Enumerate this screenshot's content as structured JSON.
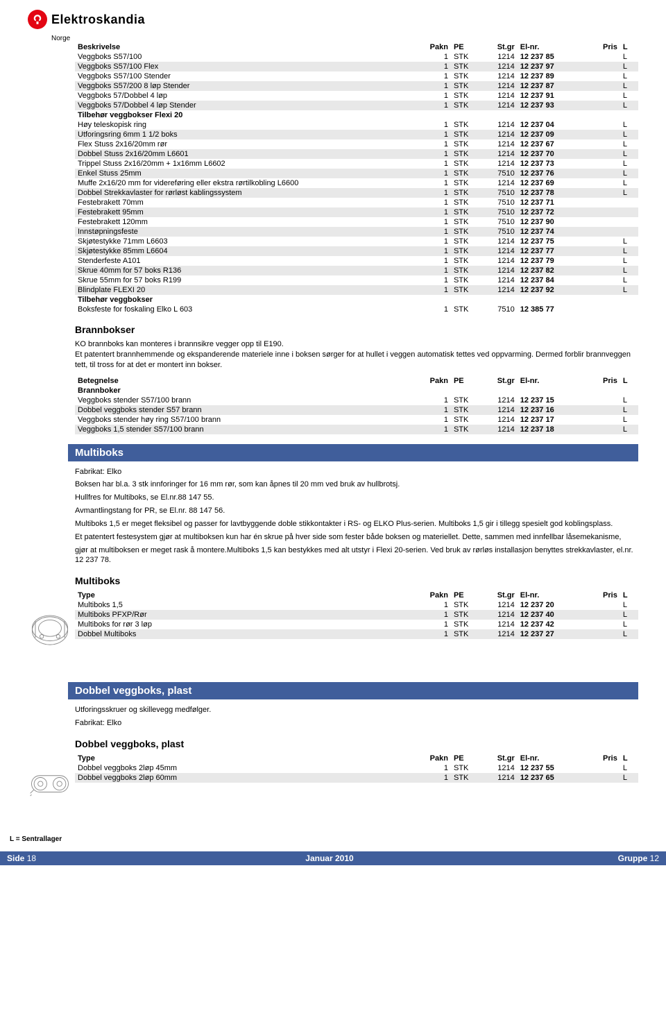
{
  "brand": {
    "name": "Elektroskandia",
    "sub": "Norge"
  },
  "colors": {
    "brand_red": "#e30613",
    "bar_blue": "#405e9b",
    "shade": "#e8e8e8"
  },
  "table1": {
    "headers": [
      "Beskrivelse",
      "Pakn",
      "PE",
      "St.gr",
      "El-nr.",
      "Pris",
      "L"
    ],
    "section_labels": {
      "tilbehor_flexi": "Tilbehør veggbokser Flexi 20",
      "tilbehor": "Tilbehør veggbokser"
    },
    "rows": [
      {
        "d": "Veggboks S57/100",
        "p": "1",
        "pe": "STK",
        "sg": "1214",
        "el": "12 237 85",
        "l": "L",
        "s": 0
      },
      {
        "d": "Veggboks S57/100 Flex",
        "p": "1",
        "pe": "STK",
        "sg": "1214",
        "el": "12 237 97",
        "l": "L",
        "s": 1
      },
      {
        "d": "Veggboks S57/100 Stender",
        "p": "1",
        "pe": "STK",
        "sg": "1214",
        "el": "12 237 89",
        "l": "L",
        "s": 0
      },
      {
        "d": "Veggboks S57/200 8 løp Stender",
        "p": "1",
        "pe": "STK",
        "sg": "1214",
        "el": "12 237 87",
        "l": "L",
        "s": 1
      },
      {
        "d": "Veggboks 57/Dobbel 4 løp",
        "p": "1",
        "pe": "STK",
        "sg": "1214",
        "el": "12 237 91",
        "l": "L",
        "s": 0
      },
      {
        "d": "Veggboks 57/Dobbel 4 løp Stender",
        "p": "1",
        "pe": "STK",
        "sg": "1214",
        "el": "12 237 93",
        "l": "L",
        "s": 1
      },
      {
        "section": "tilbehor_flexi"
      },
      {
        "d": "Høy teleskopisk ring",
        "p": "1",
        "pe": "STK",
        "sg": "1214",
        "el": "12 237 04",
        "l": "L",
        "s": 0
      },
      {
        "d": "Utforingsring 6mm 1 1/2 boks",
        "p": "1",
        "pe": "STK",
        "sg": "1214",
        "el": "12 237 09",
        "l": "L",
        "s": 1
      },
      {
        "d": "Flex Stuss 2x16/20mm rør",
        "p": "1",
        "pe": "STK",
        "sg": "1214",
        "el": "12 237 67",
        "l": "L",
        "s": 0
      },
      {
        "d": "Dobbel Stuss 2x16/20mm L6601",
        "p": "1",
        "pe": "STK",
        "sg": "1214",
        "el": "12 237 70",
        "l": "L",
        "s": 1
      },
      {
        "d": "Trippel Stuss 2x16/20mm + 1x16mm L6602",
        "p": "1",
        "pe": "STK",
        "sg": "1214",
        "el": "12 237 73",
        "l": "L",
        "s": 0
      },
      {
        "d": "Enkel Stuss 25mm",
        "p": "1",
        "pe": "STK",
        "sg": "7510",
        "el": "12 237 76",
        "l": "L",
        "s": 1
      },
      {
        "d": "Muffe 2x16/20 mm for videreføring eller ekstra rørtilkobling L6600",
        "p": "1",
        "pe": "STK",
        "sg": "1214",
        "el": "12 237 69",
        "l": "L",
        "s": 0
      },
      {
        "d": "Dobbel Strekkavlaster for rørløst kablingssystem",
        "p": "1",
        "pe": "STK",
        "sg": "7510",
        "el": "12 237 78",
        "l": "L",
        "s": 1
      },
      {
        "d": "Festebrakett 70mm",
        "p": "1",
        "pe": "STK",
        "sg": "7510",
        "el": "12 237 71",
        "l": "",
        "s": 0
      },
      {
        "d": "Festebrakett 95mm",
        "p": "1",
        "pe": "STK",
        "sg": "7510",
        "el": "12 237 72",
        "l": "",
        "s": 1
      },
      {
        "d": "Festebrakett 120mm",
        "p": "1",
        "pe": "STK",
        "sg": "7510",
        "el": "12 237 90",
        "l": "",
        "s": 0
      },
      {
        "d": "Innstøpningsfeste",
        "p": "1",
        "pe": "STK",
        "sg": "7510",
        "el": "12 237 74",
        "l": "",
        "s": 1
      },
      {
        "d": "Skjøtestykke 71mm L6603",
        "p": "1",
        "pe": "STK",
        "sg": "1214",
        "el": "12 237 75",
        "l": "L",
        "s": 0
      },
      {
        "d": "Skjøtestykke 85mm L6604",
        "p": "1",
        "pe": "STK",
        "sg": "1214",
        "el": "12 237 77",
        "l": "L",
        "s": 1
      },
      {
        "d": "Stenderfeste A101",
        "p": "1",
        "pe": "STK",
        "sg": "1214",
        "el": "12 237 79",
        "l": "L",
        "s": 0
      },
      {
        "d": "Skrue 40mm  for 57 boks R136",
        "p": "1",
        "pe": "STK",
        "sg": "1214",
        "el": "12 237 82",
        "l": "L",
        "s": 1
      },
      {
        "d": "Skrue 55mm for 57 boks R199",
        "p": "1",
        "pe": "STK",
        "sg": "1214",
        "el": "12 237 84",
        "l": "L",
        "s": 0
      },
      {
        "d": "Blindplate FLEXI 20",
        "p": "1",
        "pe": "STK",
        "sg": "1214",
        "el": "12 237 92",
        "l": "L",
        "s": 1
      },
      {
        "section": "tilbehor"
      },
      {
        "d": "Boksfeste for foskaling Elko L 603",
        "p": "1",
        "pe": "STK",
        "sg": "7510",
        "el": "12 385 77",
        "l": "",
        "s": 0
      }
    ]
  },
  "brannbokser": {
    "title": "Brannbokser",
    "para": "KO brannboks kan monteres i brannsikre vegger opp til E190.\nEt patentert brannhemmende og ekspanderende materiele inne i boksen sørger for at hullet i veggen automatisk tettes ved oppvarming. Dermed forblir brannveggen tett, til tross for at det er montert inn bokser.",
    "headers": [
      "Betegnelse",
      "Pakn",
      "PE",
      "St.gr",
      "El-nr.",
      "Pris",
      "L"
    ],
    "section_label": "Brannboker",
    "rows": [
      {
        "d": "Veggboks stender S57/100 brann",
        "p": "1",
        "pe": "STK",
        "sg": "1214",
        "el": "12 237 15",
        "l": "L",
        "s": 0
      },
      {
        "d": "Dobbel veggboks stender S57 brann",
        "p": "1",
        "pe": "STK",
        "sg": "1214",
        "el": "12 237 16",
        "l": "L",
        "s": 1
      },
      {
        "d": "Veggboks stender høy ring  S57/100 brann",
        "p": "1",
        "pe": "STK",
        "sg": "1214",
        "el": "12 237 17",
        "l": "L",
        "s": 0
      },
      {
        "d": "Veggboks 1,5 stender S57/100 brann",
        "p": "1",
        "pe": "STK",
        "sg": "1214",
        "el": "12 237 18",
        "l": "L",
        "s": 1
      }
    ]
  },
  "multiboks": {
    "bar": "Multiboks",
    "fabrikat": "Fabrikat: Elko",
    "lines": [
      "Boksen har bl.a. 3 stk innforinger for 16 mm rør, som kan åpnes til 20 mm ved bruk av hullbrotsj.",
      "Hullfres for Multiboks, se El.nr.88 147 55.",
      "Avmantlingstang for PR, se El.nr. 88 147 56.",
      "Multiboks 1,5 er meget fleksibel og passer for lavtbyggende doble stikkontakter i RS- og ELKO Plus-serien. Multiboks 1,5 gir i tillegg spesielt god koblingsplass.",
      "Et patentert festesystem gjør at multiboksen kun har én skrue på hver side som fester både boksen og materiellet. Dette, sammen med innfellbar låsemekanisme,",
      "gjør at multiboksen er meget rask å montere.Multiboks 1,5 kan bestykkes med alt utstyr i Flexi 20-serien. Ved bruk av rørløs installasjon benyttes strekkavlaster, el.nr. 12 237 78."
    ],
    "subtitle": "Multiboks",
    "headers": [
      "Type",
      "Pakn",
      "PE",
      "St.gr",
      "El-nr.",
      "Pris",
      "L"
    ],
    "rows": [
      {
        "d": "Multiboks 1,5",
        "p": "1",
        "pe": "STK",
        "sg": "1214",
        "el": "12 237 20",
        "l": "L",
        "s": 0
      },
      {
        "d": "Multiboks PFXP/Rør",
        "p": "1",
        "pe": "STK",
        "sg": "1214",
        "el": "12 237 40",
        "l": "L",
        "s": 1
      },
      {
        "d": "Multiboks for rør 3 løp",
        "p": "1",
        "pe": "STK",
        "sg": "1214",
        "el": "12 237 42",
        "l": "L",
        "s": 0
      },
      {
        "d": "Dobbel Multiboks",
        "p": "1",
        "pe": "STK",
        "sg": "1214",
        "el": "12 237 27",
        "l": "L",
        "s": 1
      }
    ]
  },
  "dobbel": {
    "bar": "Dobbel veggboks, plast",
    "line1": "Utforingsskruer og skillevegg medfølger.",
    "line2": "Fabrikat: Elko",
    "subtitle": "Dobbel veggboks, plast",
    "headers": [
      "Type",
      "Pakn",
      "PE",
      "St.gr",
      "El-nr.",
      "Pris",
      "L"
    ],
    "rows": [
      {
        "d": "Dobbel veggboks 2løp 45mm",
        "p": "1",
        "pe": "STK",
        "sg": "1214",
        "el": "12 237 55",
        "l": "L",
        "s": 0
      },
      {
        "d": "Dobbel veggboks 2løp 60mm",
        "p": "1",
        "pe": "STK",
        "sg": "1214",
        "el": "12 237 65",
        "l": "L",
        "s": 1
      }
    ]
  },
  "legend": "L = Sentrallager",
  "footer": {
    "left_label": "Side",
    "left_val": "18",
    "mid": "Januar 2010",
    "right_label": "Gruppe",
    "right_val": "12"
  }
}
